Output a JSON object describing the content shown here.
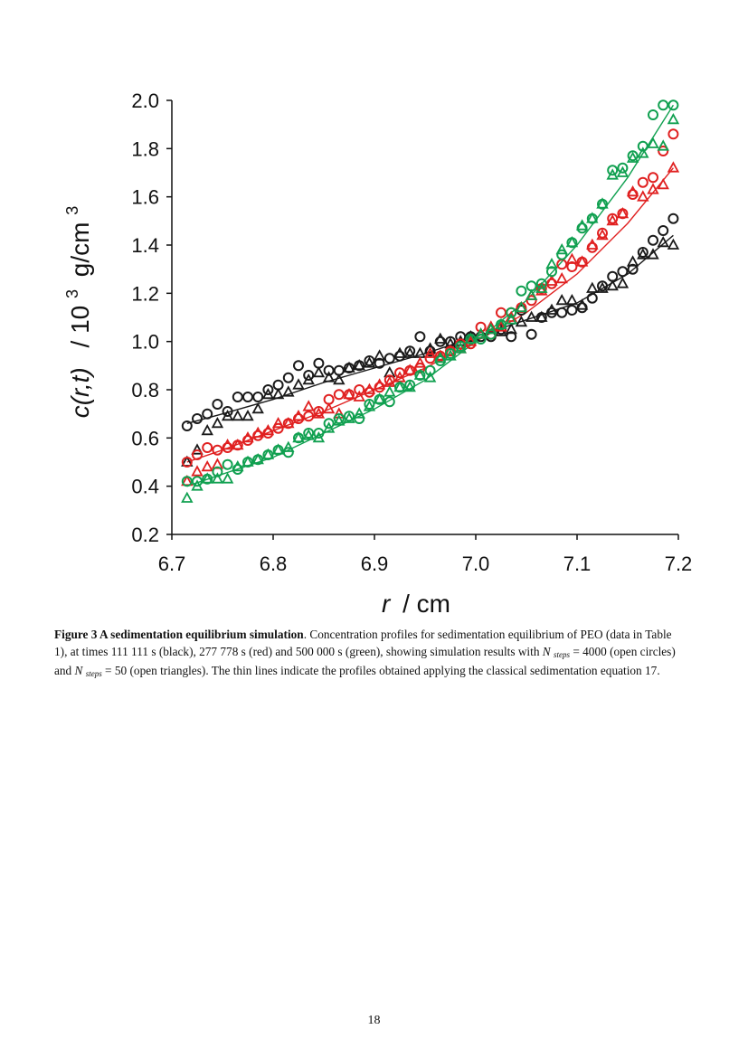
{
  "chart_data": {
    "type": "scatter",
    "xlabel_var": "r",
    "xlabel_unit": "/ cm",
    "ylabel_func": "c(r,t)",
    "ylabel_unit_pre": "/ 10",
    "ylabel_unit_exp": "3",
    "ylabel_unit_post": "g/cm",
    "ylabel_unit_exp2": "3",
    "xlim": [
      6.7,
      7.2
    ],
    "ylim": [
      0.2,
      2.0
    ],
    "x_ticks": [
      "6.7",
      "6.8",
      "6.9",
      "7.0",
      "7.1",
      "7.2"
    ],
    "y_ticks": [
      "0.2",
      "0.4",
      "0.6",
      "0.8",
      "1.0",
      "1.2",
      "1.4",
      "1.6",
      "1.8",
      "2.0"
    ],
    "series": [
      {
        "name": "111 111 s",
        "color": "#1a1a1a",
        "circles": {
          "x": [
            6.715,
            6.725,
            6.735,
            6.745,
            6.755,
            6.765,
            6.775,
            6.785,
            6.795,
            6.805,
            6.815,
            6.825,
            6.835,
            6.845,
            6.855,
            6.865,
            6.875,
            6.885,
            6.895,
            6.905,
            6.915,
            6.925,
            6.935,
            6.945,
            6.955,
            6.965,
            6.975,
            6.985,
            6.995,
            7.005,
            7.015,
            7.025,
            7.035,
            7.045,
            7.055,
            7.065,
            7.075,
            7.085,
            7.095,
            7.105,
            7.115,
            7.125,
            7.135,
            7.145,
            7.155,
            7.165,
            7.175,
            7.185,
            7.195
          ],
          "y": [
            0.65,
            0.68,
            0.7,
            0.74,
            0.71,
            0.77,
            0.77,
            0.77,
            0.8,
            0.82,
            0.85,
            0.9,
            0.86,
            0.91,
            0.88,
            0.88,
            0.89,
            0.9,
            0.92,
            0.91,
            0.93,
            0.94,
            0.96,
            1.02,
            0.96,
            1.0,
            1.0,
            1.02,
            1.02,
            1.02,
            1.02,
            1.05,
            1.02,
            1.13,
            1.03,
            1.1,
            1.12,
            1.12,
            1.13,
            1.14,
            1.18,
            1.23,
            1.27,
            1.29,
            1.3,
            1.37,
            1.42,
            1.46,
            1.51
          ]
        },
        "triangles": {
          "x": [
            6.715,
            6.725,
            6.735,
            6.745,
            6.755,
            6.765,
            6.775,
            6.785,
            6.795,
            6.805,
            6.815,
            6.825,
            6.835,
            6.845,
            6.855,
            6.865,
            6.875,
            6.885,
            6.895,
            6.905,
            6.915,
            6.925,
            6.935,
            6.945,
            6.955,
            6.965,
            6.975,
            6.985,
            6.995,
            7.005,
            7.015,
            7.025,
            7.035,
            7.045,
            7.055,
            7.065,
            7.075,
            7.085,
            7.095,
            7.105,
            7.115,
            7.125,
            7.135,
            7.145,
            7.155,
            7.165,
            7.175,
            7.185,
            7.195
          ],
          "y": [
            0.5,
            0.55,
            0.63,
            0.66,
            0.69,
            0.69,
            0.69,
            0.72,
            0.78,
            0.78,
            0.79,
            0.82,
            0.84,
            0.87,
            0.85,
            0.84,
            0.89,
            0.9,
            0.91,
            0.94,
            0.87,
            0.95,
            0.95,
            0.95,
            0.97,
            1.01,
            0.99,
            1.0,
            1.02,
            1.03,
            1.05,
            1.04,
            1.05,
            1.08,
            1.1,
            1.1,
            1.13,
            1.17,
            1.17,
            1.15,
            1.22,
            1.22,
            1.23,
            1.24,
            1.33,
            1.36,
            1.36,
            1.41,
            1.4
          ]
        }
      },
      {
        "name": "277 778 s",
        "color": "#e02020",
        "circles": {
          "x": [
            6.715,
            6.725,
            6.735,
            6.745,
            6.755,
            6.765,
            6.775,
            6.785,
            6.795,
            6.805,
            6.815,
            6.825,
            6.835,
            6.845,
            6.855,
            6.865,
            6.875,
            6.885,
            6.895,
            6.905,
            6.915,
            6.925,
            6.935,
            6.945,
            6.955,
            6.965,
            6.975,
            6.985,
            6.995,
            7.005,
            7.015,
            7.025,
            7.035,
            7.045,
            7.055,
            7.065,
            7.075,
            7.085,
            7.095,
            7.105,
            7.115,
            7.125,
            7.135,
            7.145,
            7.155,
            7.165,
            7.175,
            7.185,
            7.195
          ],
          "y": [
            0.5,
            0.53,
            0.56,
            0.55,
            0.56,
            0.57,
            0.59,
            0.61,
            0.62,
            0.64,
            0.66,
            0.68,
            0.69,
            0.71,
            0.76,
            0.78,
            0.78,
            0.8,
            0.79,
            0.81,
            0.84,
            0.87,
            0.88,
            0.89,
            0.93,
            0.94,
            0.96,
            0.99,
            0.99,
            1.06,
            1.03,
            1.12,
            1.12,
            1.14,
            1.17,
            1.22,
            1.24,
            1.32,
            1.31,
            1.33,
            1.39,
            1.45,
            1.51,
            1.53,
            1.61,
            1.66,
            1.68,
            1.79,
            1.86
          ]
        },
        "triangles": {
          "x": [
            6.715,
            6.725,
            6.735,
            6.745,
            6.755,
            6.765,
            6.775,
            6.785,
            6.795,
            6.805,
            6.815,
            6.825,
            6.835,
            6.845,
            6.855,
            6.865,
            6.875,
            6.885,
            6.895,
            6.905,
            6.915,
            6.925,
            6.935,
            6.945,
            6.955,
            6.965,
            6.975,
            6.985,
            6.995,
            7.005,
            7.015,
            7.025,
            7.035,
            7.045,
            7.055,
            7.065,
            7.075,
            7.085,
            7.095,
            7.105,
            7.115,
            7.125,
            7.135,
            7.145,
            7.155,
            7.165,
            7.175,
            7.185,
            7.195
          ],
          "y": [
            0.42,
            0.46,
            0.48,
            0.49,
            0.57,
            0.57,
            0.6,
            0.62,
            0.63,
            0.66,
            0.66,
            0.69,
            0.73,
            0.7,
            0.72,
            0.7,
            0.78,
            0.77,
            0.8,
            0.82,
            0.83,
            0.85,
            0.88,
            0.91,
            0.95,
            0.94,
            0.96,
            0.97,
            1.0,
            1.03,
            1.06,
            1.06,
            1.1,
            1.14,
            1.19,
            1.21,
            1.25,
            1.26,
            1.34,
            1.33,
            1.4,
            1.44,
            1.5,
            1.53,
            1.62,
            1.6,
            1.63,
            1.65,
            1.72
          ]
        }
      },
      {
        "name": "500 000 s",
        "color": "#10a050",
        "circles": {
          "x": [
            6.715,
            6.725,
            6.735,
            6.745,
            6.755,
            6.765,
            6.775,
            6.785,
            6.795,
            6.805,
            6.815,
            6.825,
            6.835,
            6.845,
            6.855,
            6.865,
            6.875,
            6.885,
            6.895,
            6.905,
            6.915,
            6.925,
            6.935,
            6.945,
            6.955,
            6.965,
            6.975,
            6.985,
            6.995,
            7.005,
            7.015,
            7.025,
            7.035,
            7.045,
            7.055,
            7.065,
            7.075,
            7.085,
            7.095,
            7.105,
            7.115,
            7.125,
            7.135,
            7.145,
            7.155,
            7.165,
            7.175,
            7.185,
            7.195
          ],
          "y": [
            0.42,
            0.42,
            0.43,
            0.46,
            0.49,
            0.47,
            0.5,
            0.51,
            0.53,
            0.55,
            0.54,
            0.6,
            0.62,
            0.62,
            0.66,
            0.68,
            0.69,
            0.68,
            0.74,
            0.76,
            0.75,
            0.81,
            0.82,
            0.86,
            0.88,
            0.92,
            0.95,
            0.98,
            1.01,
            1.01,
            1.03,
            1.07,
            1.12,
            1.21,
            1.23,
            1.24,
            1.29,
            1.36,
            1.41,
            1.47,
            1.51,
            1.57,
            1.71,
            1.72,
            1.77,
            1.81,
            1.94,
            1.98,
            1.98
          ]
        },
        "triangles": {
          "x": [
            6.715,
            6.725,
            6.735,
            6.745,
            6.755,
            6.765,
            6.775,
            6.785,
            6.795,
            6.805,
            6.815,
            6.825,
            6.835,
            6.845,
            6.855,
            6.865,
            6.875,
            6.885,
            6.895,
            6.905,
            6.915,
            6.925,
            6.935,
            6.945,
            6.955,
            6.965,
            6.975,
            6.985,
            6.995,
            7.005,
            7.015,
            7.025,
            7.035,
            7.045,
            7.055,
            7.065,
            7.075,
            7.085,
            7.095,
            7.105,
            7.115,
            7.125,
            7.135,
            7.145,
            7.155,
            7.165,
            7.175,
            7.185,
            7.195
          ],
          "y": [
            0.35,
            0.4,
            0.43,
            0.43,
            0.43,
            0.48,
            0.5,
            0.51,
            0.53,
            0.55,
            0.56,
            0.6,
            0.61,
            0.6,
            0.64,
            0.67,
            0.68,
            0.7,
            0.73,
            0.76,
            0.79,
            0.81,
            0.81,
            0.86,
            0.85,
            0.93,
            0.94,
            0.97,
            1.01,
            1.03,
            1.05,
            1.07,
            1.09,
            1.14,
            1.19,
            1.22,
            1.32,
            1.38,
            1.41,
            1.48,
            1.51,
            1.57,
            1.69,
            1.7,
            1.76,
            1.78,
            1.82,
            1.81,
            1.92
          ]
        }
      }
    ],
    "lines": [
      {
        "color": "#1a1a1a",
        "x": [
          6.715,
          6.75,
          6.8,
          6.85,
          6.9,
          6.95,
          7.0,
          7.05,
          7.1,
          7.15,
          7.195
        ],
        "y": [
          0.66,
          0.7,
          0.76,
          0.83,
          0.89,
          0.95,
          1.02,
          1.09,
          1.16,
          1.28,
          1.44
        ]
      },
      {
        "color": "#e02020",
        "x": [
          6.715,
          6.75,
          6.8,
          6.85,
          6.9,
          6.95,
          7.0,
          7.05,
          7.1,
          7.15,
          7.195
        ],
        "y": [
          0.5,
          0.55,
          0.63,
          0.71,
          0.8,
          0.89,
          1.0,
          1.12,
          1.28,
          1.49,
          1.72
        ]
      },
      {
        "color": "#10a050",
        "x": [
          6.715,
          6.75,
          6.8,
          6.85,
          6.9,
          6.95,
          7.0,
          7.05,
          7.1,
          7.15,
          7.195
        ],
        "y": [
          0.4,
          0.45,
          0.52,
          0.62,
          0.72,
          0.84,
          1.0,
          1.17,
          1.4,
          1.68,
          1.98
        ]
      }
    ]
  },
  "caption": {
    "label": "Figure 3 A sedimentation equilibrium simulation",
    "text_1": ". Concentration profiles for sedimentation equilibrium of PEO (data in Table 1), at times 111 111 s (black), 277 778 s (red) and 500 000 s (green), showing simulation results with ",
    "n_1": "N",
    "sub_1": "steps",
    "text_2": " = 4000 (open circles) and ",
    "n_2": "N",
    "sub_2": "steps",
    "text_3": " = 50 (open triangles). The thin lines indicate the profiles obtained applying the classical sedimentation equation 17."
  },
  "page_number": "18"
}
